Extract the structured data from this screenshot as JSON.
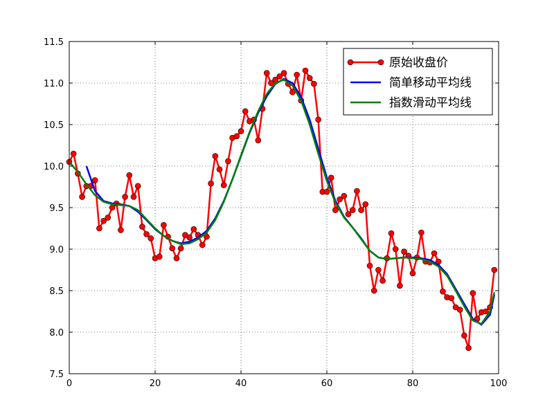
{
  "chart_data": {
    "type": "line",
    "title": "",
    "xlabel": "",
    "ylabel": "",
    "xlim": [
      0,
      100
    ],
    "ylim": [
      7.5,
      11.5
    ],
    "x_ticks": [
      "0",
      "20",
      "40",
      "60",
      "80",
      "100"
    ],
    "y_ticks": [
      "7.5",
      "8.0",
      "8.5",
      "9.0",
      "9.5",
      "10.0",
      "10.5",
      "11.0",
      "11.5"
    ],
    "grid": true,
    "legend_position": "top-right",
    "series": [
      {
        "name": "原始收盘价",
        "color": "#ff0000",
        "marker": "circle",
        "x": [
          0,
          1,
          2,
          3,
          4,
          5,
          6,
          7,
          8,
          9,
          10,
          11,
          12,
          13,
          14,
          15,
          16,
          17,
          18,
          19,
          20,
          21,
          22,
          23,
          24,
          25,
          26,
          27,
          28,
          29,
          30,
          31,
          32,
          33,
          34,
          35,
          36,
          37,
          38,
          39,
          40,
          41,
          42,
          43,
          44,
          45,
          46,
          47,
          48,
          49,
          50,
          51,
          52,
          53,
          54,
          55,
          56,
          57,
          58,
          59,
          60,
          61,
          62,
          63,
          64,
          65,
          66,
          67,
          68,
          69,
          70,
          71,
          72,
          73,
          74,
          75,
          76,
          77,
          78,
          79,
          80,
          81,
          82,
          83,
          84,
          85,
          86,
          87,
          88,
          89,
          90,
          91,
          92,
          93,
          94,
          95,
          96,
          97,
          98,
          99
        ],
        "values": [
          10.05,
          10.15,
          9.91,
          9.63,
          9.76,
          9.76,
          9.83,
          9.25,
          9.34,
          9.38,
          9.5,
          9.55,
          9.23,
          9.63,
          9.89,
          9.63,
          9.76,
          9.27,
          9.18,
          9.13,
          8.89,
          8.91,
          9.29,
          9.15,
          9.01,
          8.89,
          9.01,
          9.17,
          9.14,
          9.24,
          9.17,
          9.05,
          9.15,
          9.79,
          10.12,
          9.96,
          9.77,
          10.06,
          10.34,
          10.36,
          10.42,
          10.66,
          10.54,
          10.56,
          10.31,
          10.69,
          11.12,
          11.0,
          11.04,
          11.08,
          11.12,
          10.99,
          10.89,
          11.1,
          10.79,
          11.15,
          11.06,
          10.99,
          10.56,
          9.69,
          9.69,
          9.86,
          9.47,
          9.6,
          9.64,
          9.42,
          9.47,
          9.7,
          9.47,
          9.54,
          8.8,
          8.5,
          8.75,
          8.62,
          8.89,
          9.19,
          9.0,
          8.56,
          8.97,
          8.92,
          8.71,
          8.9,
          9.2,
          8.85,
          8.84,
          8.95,
          8.85,
          8.49,
          8.42,
          8.41,
          8.3,
          8.27,
          7.96,
          7.81,
          8.47,
          8.16,
          8.24,
          8.25,
          8.3,
          8.75
        ]
      },
      {
        "name": "简单移动平均线",
        "color": "#0000ff",
        "x": [
          4,
          6,
          8,
          10,
          12,
          14,
          16,
          18,
          20,
          22,
          24,
          26,
          28,
          30,
          32,
          34,
          36,
          38,
          40,
          42,
          44,
          46,
          48,
          50,
          52,
          54,
          56,
          58,
          60,
          62,
          64,
          66,
          68,
          70,
          72,
          74,
          76,
          78,
          80,
          82,
          84,
          86,
          88,
          90,
          92,
          94,
          96,
          98,
          99
        ],
        "values": [
          10.0,
          9.7,
          9.58,
          9.55,
          9.54,
          9.52,
          9.45,
          9.35,
          9.24,
          9.16,
          9.1,
          9.07,
          9.09,
          9.14,
          9.22,
          9.37,
          9.58,
          9.84,
          10.12,
          10.4,
          10.64,
          10.84,
          10.99,
          11.05,
          11.0,
          10.83,
          10.56,
          10.21,
          9.86,
          9.58,
          9.39,
          9.26,
          9.13,
          8.98,
          8.9,
          8.88,
          8.89,
          8.9,
          8.9,
          8.89,
          8.87,
          8.81,
          8.7,
          8.52,
          8.34,
          8.16,
          8.09,
          8.21,
          8.45
        ]
      },
      {
        "name": "指数滑动平均线",
        "color": "#008000",
        "x": [
          0,
          2,
          4,
          6,
          8,
          10,
          12,
          14,
          16,
          18,
          20,
          22,
          24,
          26,
          28,
          30,
          32,
          34,
          36,
          38,
          40,
          42,
          44,
          46,
          48,
          50,
          52,
          54,
          56,
          58,
          60,
          62,
          64,
          66,
          68,
          70,
          72,
          74,
          76,
          78,
          80,
          82,
          84,
          86,
          88,
          90,
          92,
          94,
          96,
          98,
          99
        ],
        "values": [
          10.05,
          9.93,
          9.78,
          9.65,
          9.57,
          9.54,
          9.53,
          9.52,
          9.47,
          9.36,
          9.25,
          9.16,
          9.1,
          9.06,
          9.07,
          9.12,
          9.2,
          9.35,
          9.57,
          9.84,
          10.13,
          10.41,
          10.66,
          10.87,
          11.0,
          11.04,
          10.97,
          10.79,
          10.5,
          10.15,
          9.82,
          9.56,
          9.38,
          9.26,
          9.12,
          8.98,
          8.9,
          8.88,
          8.89,
          8.9,
          8.89,
          8.88,
          8.85,
          8.79,
          8.68,
          8.5,
          8.31,
          8.14,
          8.1,
          8.25,
          8.48
        ]
      }
    ]
  }
}
